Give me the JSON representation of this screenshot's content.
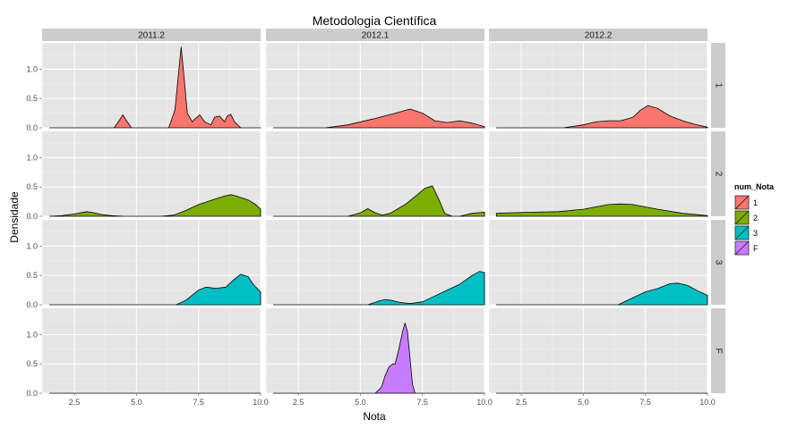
{
  "chart_data": {
    "type": "area",
    "subtype": "faceted-density",
    "title": "Metodologia Científica",
    "xlabel": "Nota",
    "ylabel": "Densidade",
    "xlim": [
      1.2,
      10.0
    ],
    "ylim": [
      0,
      1.45
    ],
    "x_ticks": [
      2.5,
      5.0,
      7.5,
      10.0
    ],
    "x_tick_labels": [
      "2.5",
      "5.0",
      "7.5",
      "10.0"
    ],
    "y_ticks": [
      0.0,
      0.5,
      1.0
    ],
    "y_tick_labels": [
      "0.0",
      "0.5",
      "1.0"
    ],
    "grid": true,
    "columns": [
      "2011.2",
      "2012.1",
      "2012.2"
    ],
    "rows": [
      "1",
      "2",
      "3",
      "F"
    ],
    "legend": {
      "title": "num_Nota",
      "position": "right",
      "entries": [
        {
          "label": "1",
          "color": "#F8766D"
        },
        {
          "label": "2",
          "color": "#7CAE00"
        },
        {
          "label": "3",
          "color": "#00BFC4"
        },
        {
          "label": "F",
          "color": "#C77CFF"
        }
      ]
    },
    "panels": [
      {
        "row": 0,
        "col": 0,
        "x": [
          1.5,
          4.1,
          4.3,
          4.45,
          4.6,
          4.8,
          6.3,
          6.55,
          6.7,
          6.8,
          6.9,
          7.05,
          7.25,
          7.35,
          7.55,
          7.75,
          8.0,
          8.15,
          8.35,
          8.55,
          8.65,
          8.8,
          8.95,
          9.2,
          10.0
        ],
        "y": [
          0,
          0,
          0.12,
          0.22,
          0.12,
          0,
          0,
          0.3,
          0.95,
          1.38,
          0.95,
          0.25,
          0.1,
          0.15,
          0.22,
          0.1,
          0.05,
          0.18,
          0.2,
          0.1,
          0.2,
          0.23,
          0.1,
          0,
          0
        ]
      },
      {
        "row": 0,
        "col": 1,
        "x": [
          1.5,
          3.6,
          4.5,
          5.5,
          6.5,
          7.0,
          7.5,
          8.0,
          8.5,
          9.0,
          9.5,
          10.0
        ],
        "y": [
          0,
          0,
          0.05,
          0.15,
          0.26,
          0.32,
          0.25,
          0.12,
          0.09,
          0.12,
          0.08,
          0.02
        ]
      },
      {
        "row": 0,
        "col": 2,
        "x": [
          1.5,
          4.2,
          5.0,
          5.5,
          6.0,
          6.5,
          7.0,
          7.3,
          7.6,
          8.0,
          8.5,
          9.0,
          9.5,
          10.0
        ],
        "y": [
          0,
          0,
          0.05,
          0.1,
          0.12,
          0.12,
          0.18,
          0.3,
          0.38,
          0.33,
          0.2,
          0.12,
          0.06,
          0.01
        ]
      },
      {
        "row": 1,
        "col": 0,
        "x": [
          1.5,
          2.0,
          2.5,
          3.0,
          3.3,
          3.6,
          4.0,
          4.5,
          5.0,
          6.0,
          6.5,
          7.0,
          7.5,
          8.0,
          8.5,
          8.8,
          9.0,
          9.5,
          9.8,
          10.0
        ],
        "y": [
          0,
          0.01,
          0.04,
          0.08,
          0.06,
          0.03,
          0.01,
          0,
          0,
          0,
          0.02,
          0.1,
          0.2,
          0.27,
          0.34,
          0.37,
          0.35,
          0.28,
          0.2,
          0.12
        ]
      },
      {
        "row": 1,
        "col": 1,
        "x": [
          1.5,
          4.5,
          5.0,
          5.3,
          5.6,
          5.9,
          6.2,
          6.8,
          7.3,
          7.6,
          7.9,
          8.2,
          8.4,
          8.7,
          9.0,
          9.5,
          10.0
        ],
        "y": [
          0,
          0,
          0.06,
          0.13,
          0.06,
          0.02,
          0.05,
          0.2,
          0.37,
          0.48,
          0.52,
          0.25,
          0.05,
          0,
          0,
          0.05,
          0.07
        ]
      },
      {
        "row": 1,
        "col": 2,
        "x": [
          1.5,
          2.0,
          3.0,
          4.0,
          5.0,
          6.0,
          6.5,
          7.0,
          7.5,
          8.0,
          9.0,
          10.0
        ],
        "y": [
          0.05,
          0.06,
          0.07,
          0.08,
          0.12,
          0.2,
          0.21,
          0.2,
          0.16,
          0.12,
          0.05,
          0.01
        ]
      },
      {
        "row": 2,
        "col": 0,
        "x": [
          1.5,
          6.6,
          7.0,
          7.5,
          7.8,
          8.2,
          8.6,
          8.9,
          9.2,
          9.5,
          9.7,
          10.0
        ],
        "y": [
          0,
          0,
          0.08,
          0.25,
          0.3,
          0.28,
          0.3,
          0.42,
          0.52,
          0.48,
          0.35,
          0.22
        ]
      },
      {
        "row": 2,
        "col": 1,
        "x": [
          1.5,
          5.3,
          5.8,
          6.0,
          6.2,
          6.6,
          7.0,
          7.5,
          8.0,
          8.5,
          9.0,
          9.5,
          9.8,
          10.0
        ],
        "y": [
          0,
          0,
          0.07,
          0.09,
          0.08,
          0.04,
          0.02,
          0.05,
          0.15,
          0.25,
          0.35,
          0.5,
          0.57,
          0.55
        ]
      },
      {
        "row": 2,
        "col": 2,
        "x": [
          1.5,
          6.4,
          7.0,
          7.5,
          8.0,
          8.5,
          8.8,
          9.2,
          9.6,
          10.0
        ],
        "y": [
          0,
          0,
          0.12,
          0.22,
          0.28,
          0.36,
          0.37,
          0.33,
          0.24,
          0.16
        ]
      },
      {
        "row": 3,
        "col": 0,
        "x": [
          1.5,
          10.0
        ],
        "y": [
          0,
          0
        ]
      },
      {
        "row": 3,
        "col": 1,
        "x": [
          1.5,
          5.6,
          5.85,
          6.0,
          6.15,
          6.3,
          6.4,
          6.55,
          6.7,
          6.8,
          6.9,
          7.0,
          7.1,
          7.2,
          10.0
        ],
        "y": [
          0,
          0,
          0.1,
          0.3,
          0.45,
          0.5,
          0.5,
          0.75,
          1.05,
          1.2,
          1.05,
          0.6,
          0.15,
          0,
          0
        ]
      },
      {
        "row": 3,
        "col": 2,
        "x": [
          1.5,
          10.0
        ],
        "y": [
          0,
          0
        ]
      }
    ]
  }
}
